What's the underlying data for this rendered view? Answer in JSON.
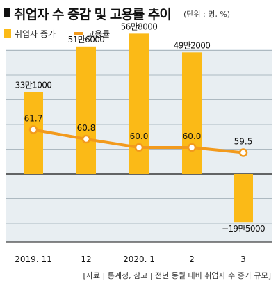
{
  "header": {
    "title": "취업자 수 증감 및 고용률 추이",
    "unit": "(단위 : 명, %)"
  },
  "legend": {
    "bar_label": "취업자 증가",
    "line_label": "고용률"
  },
  "source": "[자료 | 통계청, 참고 | 전년 동월 대비 취업자 수 증가 규모]",
  "colors": {
    "bar": "#FBBA17",
    "line": "#F29A1D",
    "gridline": "#9aa7b1",
    "plot_bg": "#E8EEF2"
  },
  "chart_data": {
    "type": "bar",
    "categories": [
      "2019. 11",
      "12",
      "2020. 1",
      "2",
      "3"
    ],
    "series": [
      {
        "name": "취업자 증가",
        "type": "bar",
        "values": [
          331000,
          516000,
          568000,
          492000,
          -195000
        ],
        "labels": [
          "33만1000",
          "51만6000",
          "56만8000",
          "49만2000",
          "−19만5000"
        ]
      },
      {
        "name": "고용률",
        "type": "line",
        "values": [
          61.7,
          60.8,
          60.0,
          60.0,
          59.5
        ],
        "labels": [
          "61.7",
          "60.8",
          "60.0",
          "60.0",
          "59.5"
        ]
      }
    ],
    "bar_ylim": [
      -300000,
      700000
    ],
    "line_ylim": [
      56.5,
      66.0
    ],
    "title": "취업자 수 증감 및 고용률 추이",
    "grid": true,
    "legend_position": "top-left"
  }
}
